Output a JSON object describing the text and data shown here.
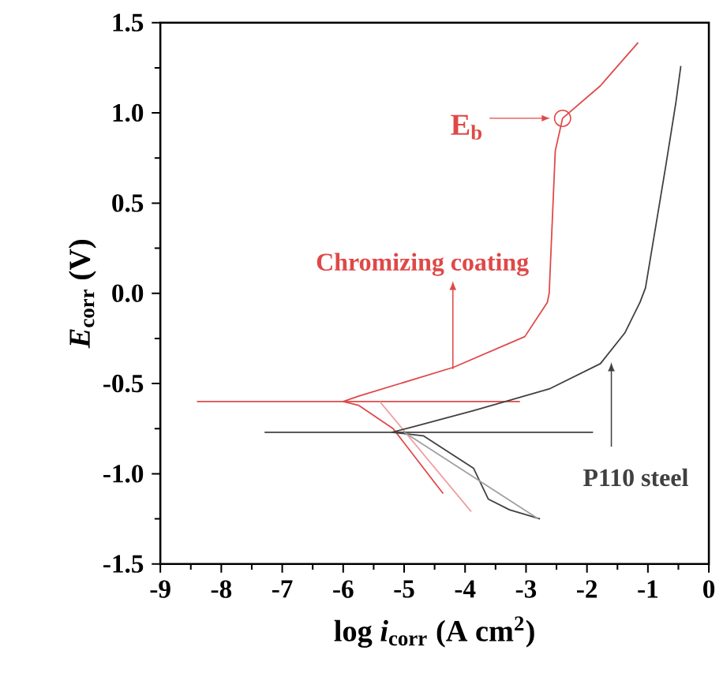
{
  "chart_data": {
    "type": "line",
    "xlabel": "log *i*$_{corr}$ (A cm$^{2}$)",
    "ylabel": "*E*$_{corr}$ (V)",
    "xlim": [
      -9,
      0
    ],
    "ylim": [
      -1.5,
      1.5
    ],
    "xticks": [
      -9,
      -8,
      -7,
      -6,
      -5,
      -4,
      -3,
      -2,
      -1,
      0
    ],
    "yticks": [
      {
        "value": -1.5,
        "label": "-1.5"
      },
      {
        "value": -1,
        "label": "-1.0"
      },
      {
        "value": -0.5,
        "label": "-0.5"
      },
      {
        "value": 0,
        "label": "0.0"
      },
      {
        "value": 0.5,
        "label": "0.5"
      },
      {
        "value": 1,
        "label": "1.0"
      },
      {
        "value": 1.5,
        "label": "1.5"
      }
    ],
    "legend": false,
    "series": [
      {
        "name": "Chromizing coating",
        "color": "#e04848",
        "x": [
          -4.36,
          -4.68,
          -5.18,
          -5.75,
          -6.0,
          -5.75,
          -4.19,
          -3.02,
          -2.65,
          -2.62,
          -2.52,
          -2.4,
          -1.78,
          -1.16
        ],
        "values": [
          -1.11,
          -0.97,
          -0.75,
          -0.62,
          -0.6,
          -0.57,
          -0.41,
          -0.24,
          -0.05,
          0.0,
          0.79,
          0.97,
          1.15,
          1.39
        ]
      },
      {
        "color": "#e04848",
        "x": [
          -8.4,
          -3.1
        ],
        "values": [
          -0.6,
          -0.6
        ]
      },
      {
        "color": "#f0a0a0",
        "x": [
          -5.4,
          -3.9
        ],
        "values": [
          -0.6,
          -1.21
        ]
      },
      {
        "name": "P110 steel",
        "color": "#404040",
        "x": [
          -2.77,
          -3.27,
          -3.62,
          -3.86,
          -4.68,
          -5.2,
          -4.85,
          -3.86,
          -2.62,
          -1.78,
          -1.38,
          -1.13,
          -1.04,
          -0.71,
          -0.54,
          -0.46
        ],
        "values": [
          -1.25,
          -1.2,
          -1.14,
          -0.97,
          -0.79,
          -0.77,
          -0.74,
          -0.65,
          -0.53,
          -0.39,
          -0.22,
          -0.05,
          0.03,
          0.7,
          1.06,
          1.26
        ]
      },
      {
        "color": "#404040",
        "x": [
          -7.29,
          -1.9
        ],
        "values": [
          -0.77,
          -0.77
        ]
      },
      {
        "color": "#a0a0a0",
        "x": [
          -5.0,
          -2.8
        ],
        "values": [
          -0.77,
          -1.25
        ]
      }
    ],
    "annotations": [
      {
        "text": "E$_{b}$",
        "x": -2.4,
        "y": 0.97
      }
    ]
  }
}
